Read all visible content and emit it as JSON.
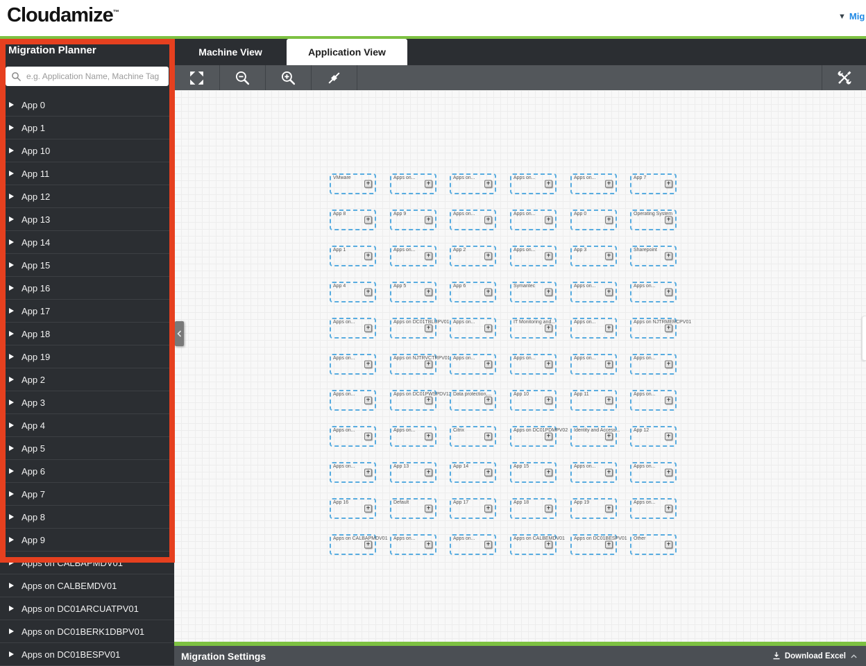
{
  "header": {
    "logo": "Cloudamize",
    "logo_tm": "™",
    "top_right_arrow": "▼",
    "top_right_link": "Mig"
  },
  "sidebar": {
    "title": "Migration Planner",
    "search_placeholder": "e.g. Application Name, Machine Tag",
    "items": [
      "App 0",
      "App 1",
      "App 10",
      "App 11",
      "App 12",
      "App 13",
      "App 14",
      "App 15",
      "App 16",
      "App 17",
      "App 18",
      "App 19",
      "App 2",
      "App 3",
      "App 4",
      "App 5",
      "App 6",
      "App 7",
      "App 8",
      "App 9",
      "Apps on CALBAPMDV01",
      "Apps on CALBEMDV01",
      "Apps on DC01ARCUATPV01",
      "Apps on DC01BERK1DBPV01",
      "Apps on DC01BESPV01"
    ]
  },
  "tabs": {
    "machine_label": "Machine View",
    "application_label": "Application View",
    "active": "Application View"
  },
  "toolbar": {
    "left_buttons": [
      "fullscreen",
      "zoom-out",
      "zoom-in",
      "connector"
    ],
    "right_button": "settings-tools"
  },
  "canvas": {
    "box_rows": [
      [
        "VMware",
        "Apps on...",
        "Apps on...",
        "Apps on...",
        "Apps on...",
        "App 7"
      ],
      [
        "App 8",
        "App 9",
        "Apps on...",
        "Apps on...",
        "App 0",
        "Operating System"
      ],
      [
        "App 1",
        "Apps on...",
        "App 2",
        "Apps on...",
        "App 3",
        "Sharepoint"
      ],
      [
        "App 4",
        "App 5",
        "App 6",
        "Symantec",
        "Apps on...",
        "Apps on..."
      ],
      [
        "Apps on...",
        "Apps on DC01TBLUPV01",
        "Apps on...",
        "IT Monitoring and...",
        "Apps on...",
        "Apps on NJTRMERCPV01"
      ],
      [
        "Apps on...",
        "Apps on NJTRVCTRPV01",
        "Apps on...",
        "Apps on...",
        "Apps on...",
        "Apps on..."
      ],
      [
        "Apps on...",
        "Apps on DC01PWSPDV12",
        "Data protection,...",
        "App 10",
        "App 11",
        "Apps on..."
      ],
      [
        "Apps on...",
        "Apps on...",
        "Citrix",
        "Apps on DC01PDMPV02",
        "Identity and Access...",
        "App 12"
      ],
      [
        "Apps on...",
        "App 13",
        "App 14",
        "App 15",
        "Apps on...",
        "Apps on..."
      ],
      [
        "App 16",
        "Default",
        "App 17",
        "App 18",
        "App 19",
        "Apps on..."
      ],
      [
        "Apps on CALBAPMDV01",
        "Apps on...",
        "Apps on...",
        "Apps on CALBEMDV01",
        "Apps on DC01BESPV01",
        "Other"
      ]
    ],
    "add_button_glyph": "+"
  },
  "bottom_bar": {
    "title": "Migration Settings",
    "download_label": "Download Excel"
  },
  "icons": {
    "search": "magnifier",
    "sidebar_row_expand": "right-triangle",
    "fullscreen": "expand-corners",
    "zoom_out": "magnifier-minus",
    "zoom_in": "magnifier-plus",
    "connector": "diagonal-line-handle",
    "settings": "crossed-wrench-screwdriver",
    "download": "arrow-down-tray",
    "collapse_panel": "chevron-left",
    "bottom_panel_toggle": "chevron-up",
    "top_dropdown": "down-triangle",
    "box_add": "plus"
  },
  "colors": {
    "accent_green": "#7dc142",
    "annotation_red": "#e6401f",
    "box_dash_blue": "#58ace0",
    "link_blue": "#1e88e5",
    "sidebar_bg": "#2b2e32",
    "toolbar_bg": "#53575b",
    "bottombar_bg": "#4b4f54",
    "canvas_bg": "#f8f8f8"
  }
}
